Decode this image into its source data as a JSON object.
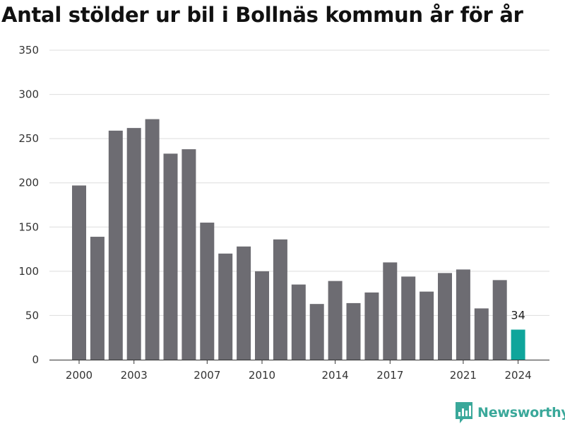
{
  "chart_data": {
    "type": "bar",
    "title": "Antal stölder ur bil i Bollnäs kommun år för år",
    "xlabel": "",
    "ylabel": "",
    "categories": [
      2000,
      2001,
      2002,
      2003,
      2004,
      2005,
      2006,
      2007,
      2008,
      2009,
      2010,
      2011,
      2012,
      2013,
      2014,
      2015,
      2016,
      2017,
      2018,
      2019,
      2020,
      2021,
      2022,
      2023,
      2024
    ],
    "values": [
      197,
      139,
      259,
      262,
      272,
      233,
      238,
      155,
      120,
      128,
      100,
      136,
      85,
      63,
      89,
      64,
      76,
      110,
      94,
      77,
      98,
      102,
      58,
      90,
      34
    ],
    "x_tick_labels": [
      "2000",
      "2003",
      "2007",
      "2010",
      "2014",
      "2017",
      "2021",
      "2024"
    ],
    "y_ticks": [
      0,
      50,
      100,
      150,
      200,
      250,
      300,
      350
    ],
    "ylim": [
      0,
      350
    ],
    "grid": true,
    "highlight": {
      "index": 24,
      "label": "34"
    },
    "colors": {
      "bar": "#6d6c72",
      "highlight": "#0fa59b",
      "grid": "#dddddd",
      "axis": "#333333"
    }
  },
  "brand": {
    "name": "Newsworthy",
    "icon": "newsworthy-logo-icon",
    "color": "#3aa89a"
  }
}
